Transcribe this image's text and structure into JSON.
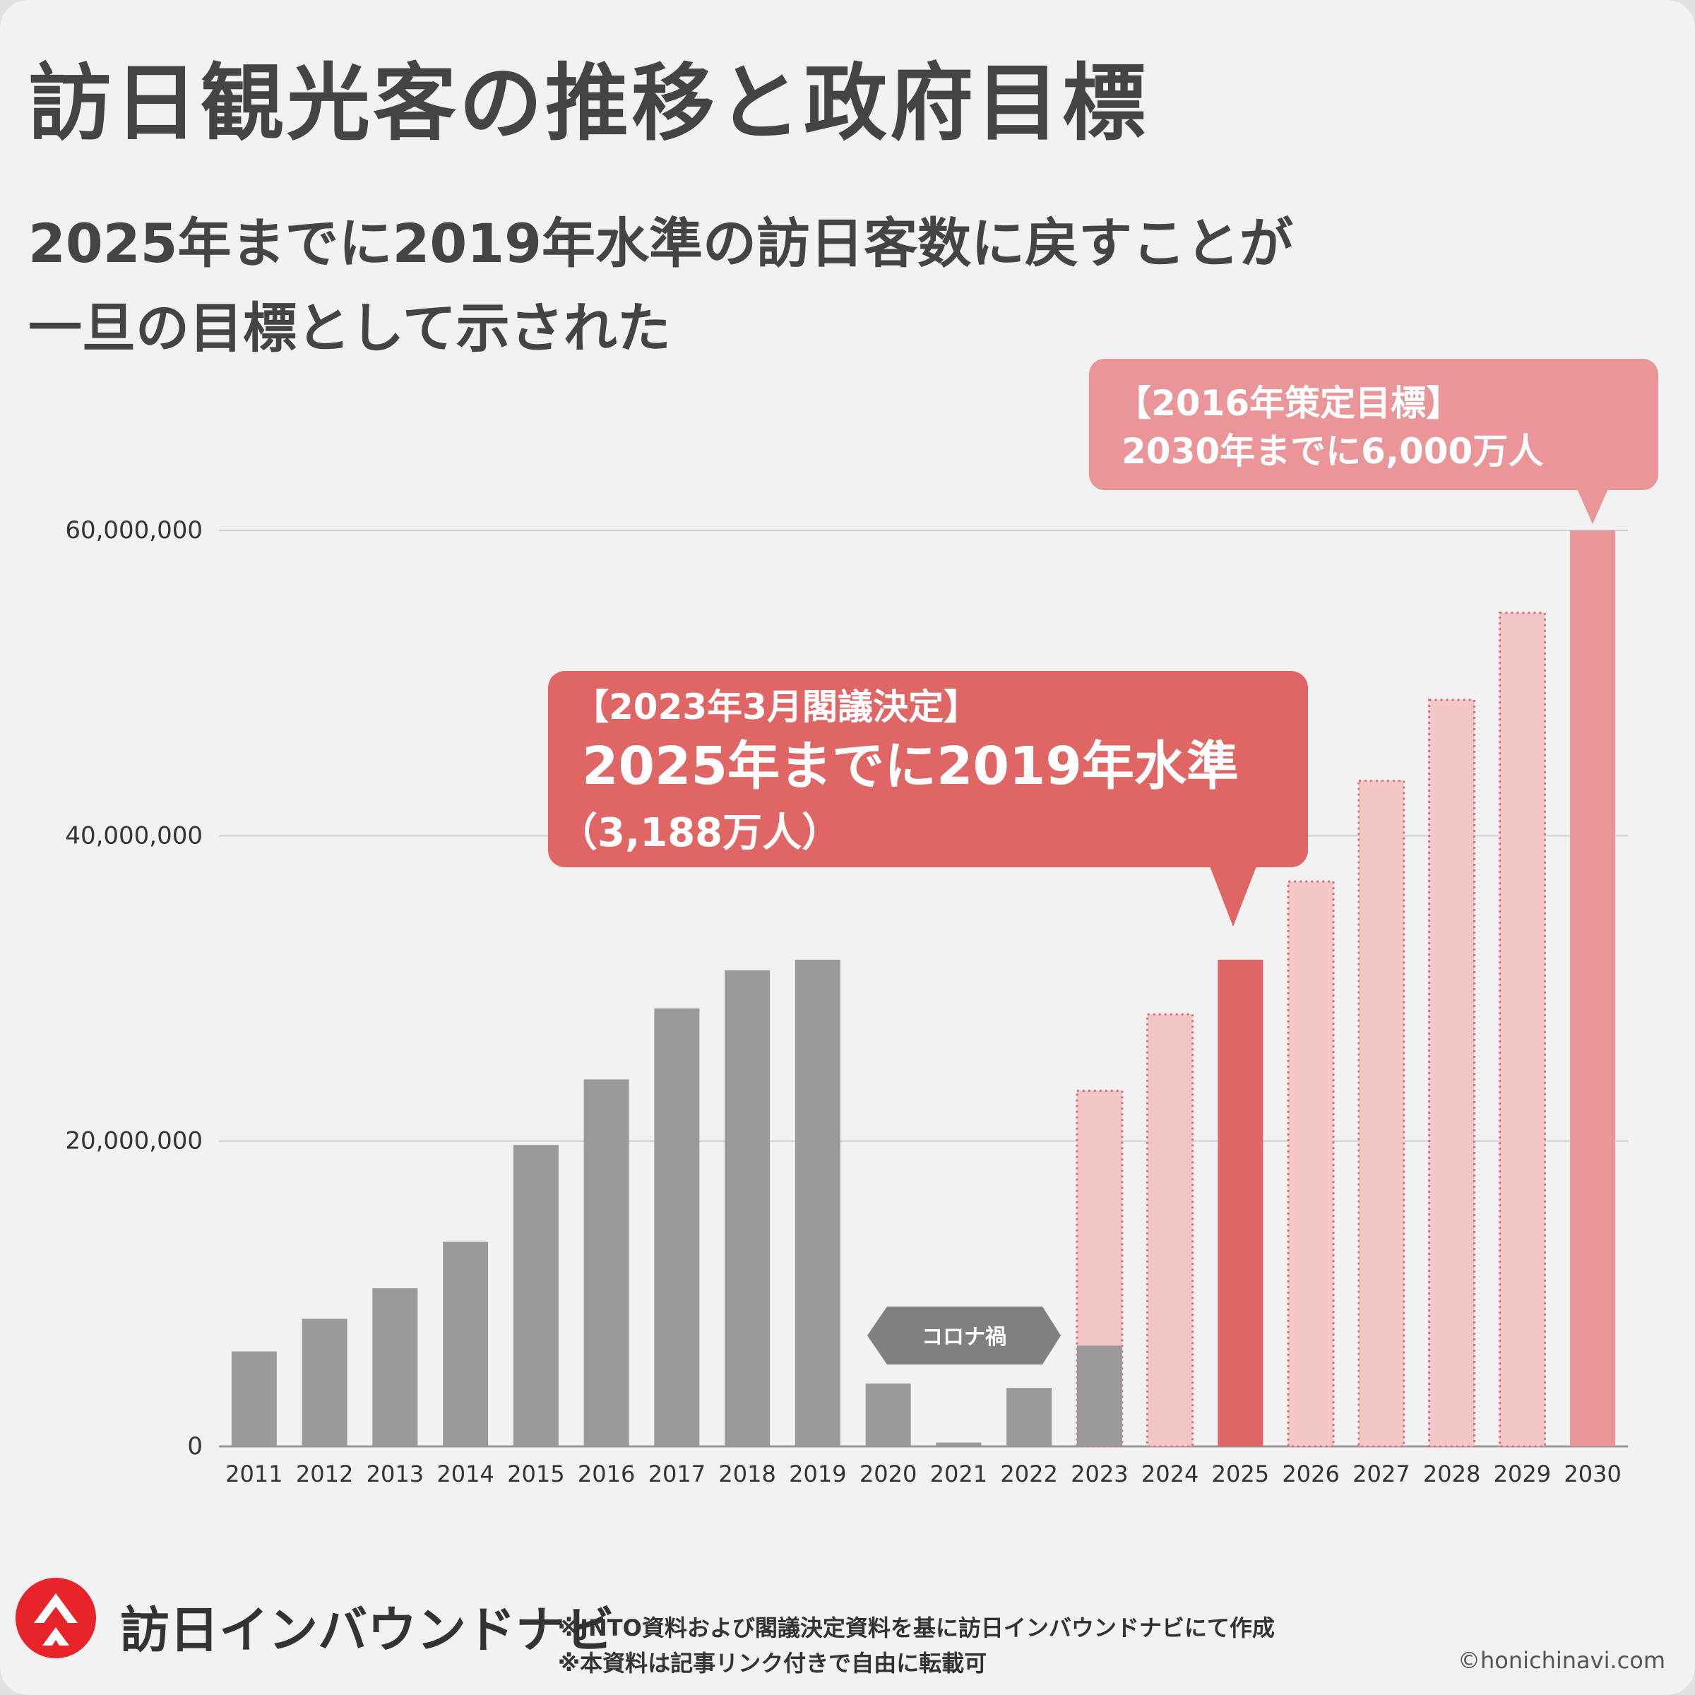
{
  "title": "訪日観光客の推移と政府目標",
  "subtitle": {
    "line1": "2025年までに2019年水準の訪日客数に戻すことが",
    "line2": "一旦の目標として示された"
  },
  "chart_data": {
    "type": "bar",
    "categories": [
      "2011",
      "2012",
      "2013",
      "2014",
      "2015",
      "2016",
      "2017",
      "2018",
      "2019",
      "2020",
      "2021",
      "2022",
      "2023",
      "2024",
      "2025",
      "2026",
      "2027",
      "2028",
      "2029",
      "2030"
    ],
    "series": [
      {
        "kind": "actual",
        "color": "#9a9a9a",
        "values": [
          6220000,
          8360000,
          10360000,
          13410000,
          19740000,
          24040000,
          28690000,
          31190000,
          31880000,
          4120000,
          250000,
          3830000,
          6600000,
          null,
          null,
          null,
          null,
          null,
          null,
          null
        ]
      },
      {
        "kind": "projection",
        "color": "#f3c6c8",
        "border": "#e07070",
        "values": [
          null,
          null,
          null,
          null,
          null,
          null,
          null,
          null,
          null,
          null,
          null,
          null,
          23300000,
          28300000,
          null,
          37000000,
          43600000,
          48900000,
          54600000,
          null
        ]
      },
      {
        "kind": "target-2025",
        "color": "#e06666",
        "values": [
          null,
          null,
          null,
          null,
          null,
          null,
          null,
          null,
          null,
          null,
          null,
          null,
          null,
          null,
          31880000,
          null,
          null,
          null,
          null,
          null
        ]
      },
      {
        "kind": "target-2030",
        "color": "#ea9598",
        "values": [
          null,
          null,
          null,
          null,
          null,
          null,
          null,
          null,
          null,
          null,
          null,
          null,
          null,
          null,
          null,
          null,
          null,
          null,
          null,
          60000000
        ]
      }
    ],
    "ylim": [
      0,
      60000000
    ],
    "yticks": [
      0,
      20000000,
      40000000,
      60000000
    ],
    "ytick_labels": [
      "0",
      "20,000,000",
      "40,000,000",
      "60,000,000"
    ],
    "grid": true,
    "annotations": {
      "target_2030": {
        "line1": "【2016年策定目標】",
        "line2": "2030年までに6,000万人",
        "color": "#ea9598"
      },
      "target_2025": {
        "line1": "【2023年3月閣議決定】",
        "line2": "2025年までに2019年水準",
        "line3": "（3,188万人）",
        "color": "#e06666"
      },
      "covid": {
        "label": "コロナ禍",
        "color": "#808080"
      }
    }
  },
  "footer": {
    "brand": "訪日インバウンドナビ",
    "note1": "※JNTO資料および閣議決定資料を基に訪日インバウンドナビにて作成",
    "note2": "※本資料は記事リンク付きで自由に転載可",
    "copyright": "©honichinavi.com",
    "logo_color": "#e8232a"
  }
}
